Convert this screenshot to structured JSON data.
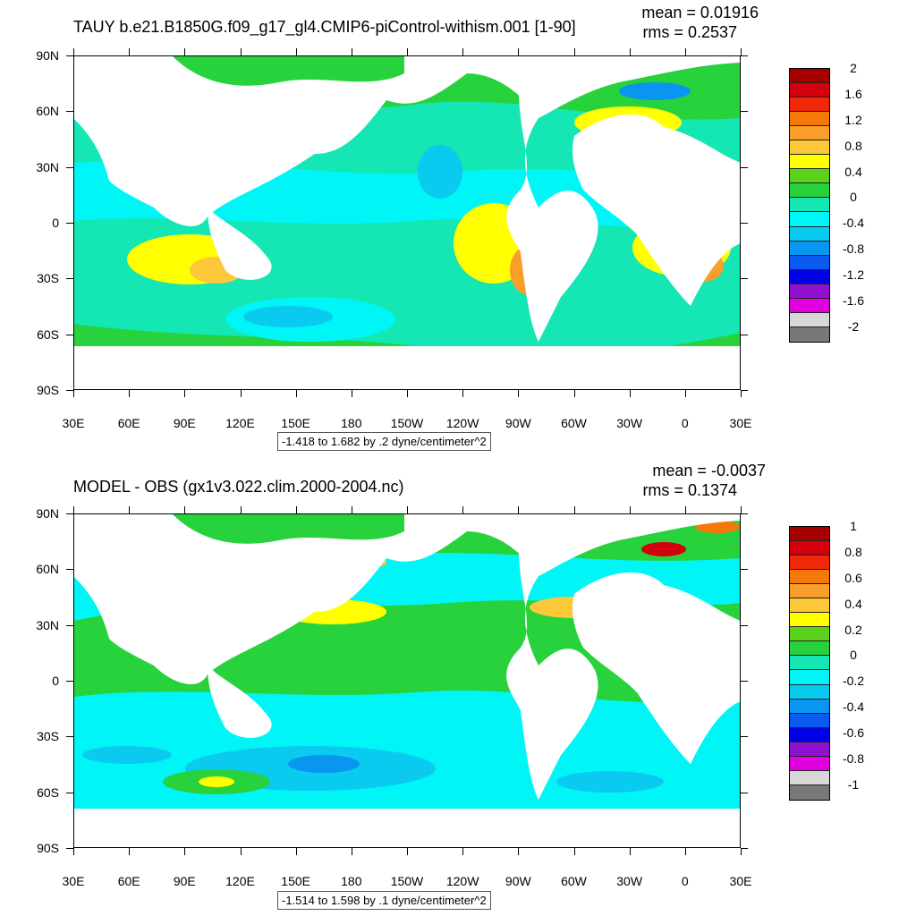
{
  "panels": [
    {
      "title": "TAUY b.e21.B1850G.f09_g17_gl4.CMIP6-piControl-withism.001 [1-90]",
      "mean": "mean = 0.01916",
      "rms": "rms = 0.2537",
      "caption": "-1.418 to 1.682 by .2 dyne/centimeter^2",
      "colorbar_labels": [
        "2",
        "1.6",
        "1.2",
        "0.8",
        "0.4",
        "0",
        "-0.4",
        "-0.8",
        "-1.2",
        "-1.6",
        "-2"
      ]
    },
    {
      "title": "MODEL - OBS (gx1v3.022.clim.2000-2004.nc)",
      "mean": "mean = -0.0037",
      "rms": "rms = 0.1374",
      "caption": "-1.514 to 1.598 by .1 dyne/centimeter^2",
      "colorbar_labels": [
        "1",
        "0.8",
        "0.6",
        "0.4",
        "0.2",
        "0",
        "-0.2",
        "-0.4",
        "-0.6",
        "-0.8",
        "-1"
      ]
    }
  ],
  "lat_labels": [
    "90N",
    "60N",
    "30N",
    "0",
    "30S",
    "60S",
    "90S"
  ],
  "lon_labels": [
    "30E",
    "60E",
    "90E",
    "120E",
    "150E",
    "180",
    "150W",
    "120W",
    "90W",
    "60W",
    "30W",
    "0",
    "30E"
  ],
  "colors": {
    "colorbar": [
      "#a50000",
      "#d4000e",
      "#f0280a",
      "#f5780a",
      "#f99e2a",
      "#fcc83a",
      "#ffff00",
      "#5ad11a",
      "#28d23c",
      "#14e6b4",
      "#00f6f6",
      "#0acaf0",
      "#0a96f0",
      "#0a5af0",
      "#0000e6",
      "#9010d0",
      "#e000e0",
      "#d8d8d8",
      "#787878"
    ],
    "land": "#ffffff",
    "ocean_base": "#14e6b4"
  }
}
